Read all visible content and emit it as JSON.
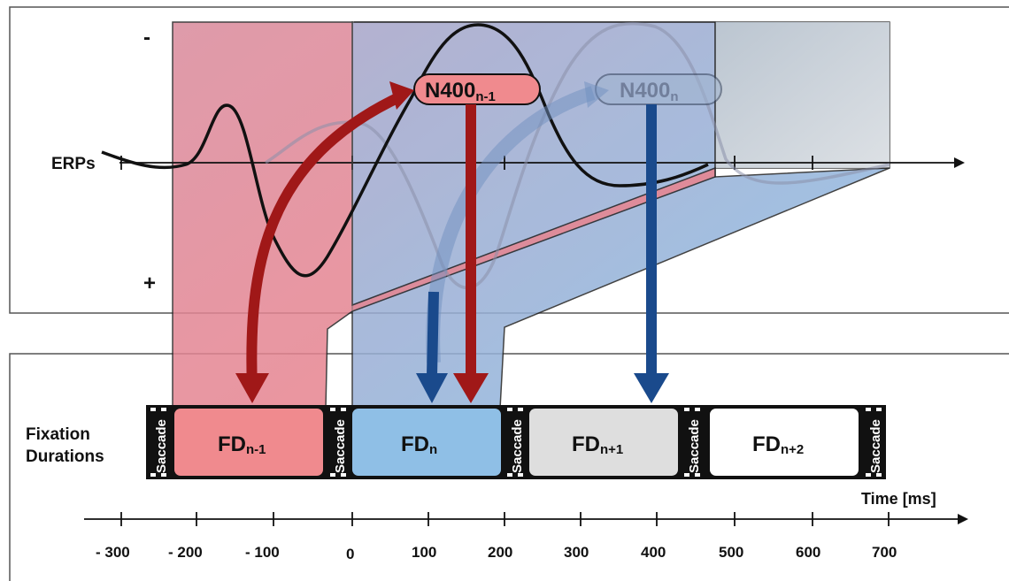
{
  "erp": {
    "label": "ERPs",
    "neg_sign": "-",
    "pos_sign": "+"
  },
  "n400": {
    "prev": {
      "main": "N400",
      "sub": "n-1"
    },
    "curr": {
      "main": "N400",
      "sub": "n"
    }
  },
  "fixation": {
    "label_line1": "Fixation",
    "label_line2": "Durations",
    "saccade_label": "Saccade",
    "boxes": [
      {
        "main": "FD",
        "sub": "n-1",
        "color": "#f08a8e"
      },
      {
        "main": "FD",
        "sub": "n",
        "color": "#8fbfe6"
      },
      {
        "main": "FD",
        "sub": "n+1",
        "color": "#dedede"
      },
      {
        "main": "FD",
        "sub": "n+2",
        "color": "#ffffff"
      }
    ]
  },
  "time_axis": {
    "label": "Time [ms]",
    "ticks": [
      "- 300",
      "- 200",
      "- 100",
      "0",
      "100",
      "200",
      "300",
      "400",
      "500",
      "600",
      "700"
    ]
  },
  "colors": {
    "red_window": "#e8707a",
    "blue_window": "#84b7e0",
    "grey_window": "#c9ced3",
    "red_arrow": "#a01818",
    "blue_arrow": "#1a4a8c"
  }
}
